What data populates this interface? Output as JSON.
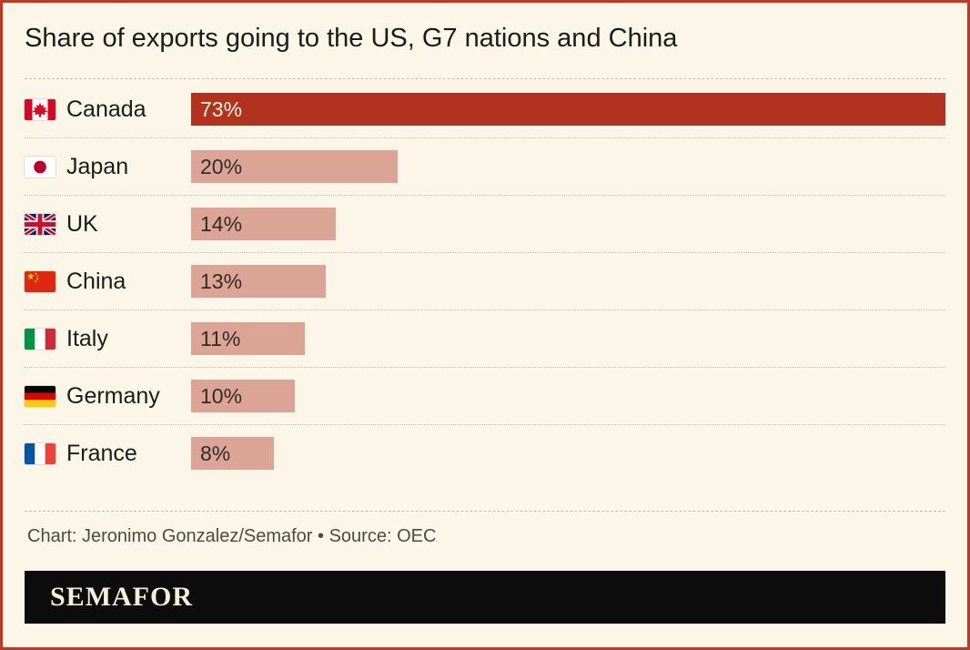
{
  "title": "Share of exports going to the US, G7 nations and China",
  "caption": "Chart: Jeronimo Gonzalez/Semafor • Source: OEC",
  "footer": {
    "logo_text": "SEMAFOR"
  },
  "colors": {
    "background": "#FBF6E7",
    "frame_border": "#C5361F",
    "bar_highlight": "#B23220",
    "bar_default": "#DCA494",
    "bar_label_on_highlight": "#FBF3DE",
    "bar_label_on_default": "#2E2C28",
    "title_text": "#1B1B19",
    "caption_text": "#4C4A43",
    "separator": "#C6C1AE",
    "footer_background": "#0C0C0C",
    "footer_text": "#F6EED9"
  },
  "chart_data": {
    "type": "bar",
    "orientation": "horizontal",
    "title": "Share of exports going to the US, G7 nations and China",
    "categories": [
      "Canada",
      "Japan",
      "UK",
      "China",
      "Italy",
      "Germany",
      "France"
    ],
    "values": [
      73,
      20,
      14,
      13,
      11,
      10,
      8
    ],
    "value_labels": [
      "73%",
      "20%",
      "14%",
      "13%",
      "11%",
      "10%",
      "8%"
    ],
    "flag_icons": [
      "canada",
      "japan",
      "uk",
      "china",
      "italy",
      "germany",
      "france"
    ],
    "axis_max": 73,
    "highlight_category": "Canada",
    "grid": false,
    "legend": false,
    "credit": "Chart: Jeronimo Gonzalez/Semafor",
    "source": "OEC"
  }
}
